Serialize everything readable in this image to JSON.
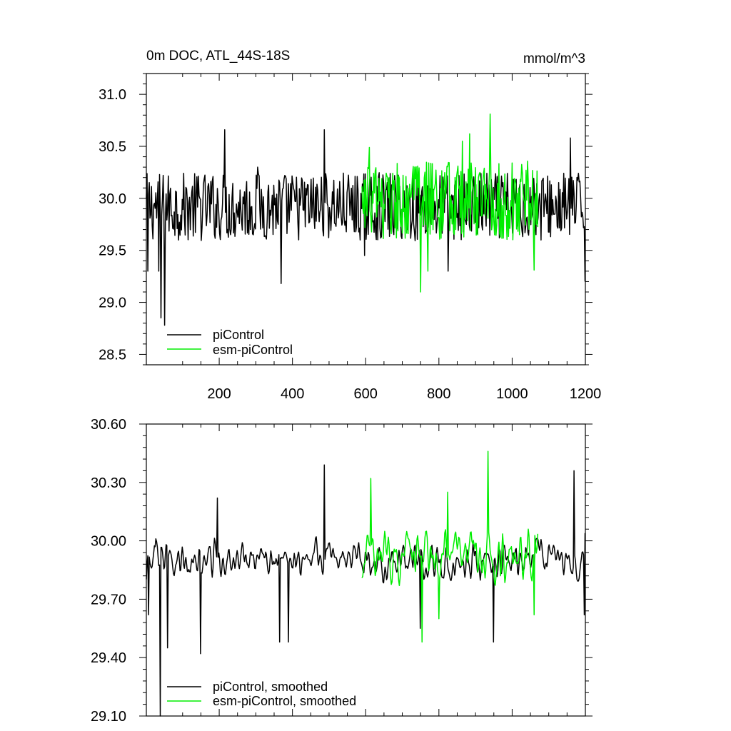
{
  "chart_data": [
    {
      "type": "line",
      "title": "0m DOC, ATL_44S-18S",
      "units": "mmol/m^3",
      "xlim": [
        1,
        1200
      ],
      "ylim": [
        28.4,
        31.2
      ],
      "x_ticks": [
        200,
        400,
        600,
        800,
        1000,
        1200
      ],
      "y_ticks": [
        28.5,
        29.0,
        29.5,
        30.0,
        30.5,
        31.0
      ],
      "y_tick_labels": [
        "28.5",
        "29.0",
        "29.5",
        "30.0",
        "30.5",
        "31.0"
      ],
      "grid": false,
      "legend_position": "bottom-left",
      "series": [
        {
          "name": "piControl",
          "color": "#000000",
          "x_range": [
            1,
            1200
          ],
          "step": 2,
          "mean": 29.92,
          "noise_amplitude": 0.33,
          "extremes": [
            [
              5,
              29.3
            ],
            [
              35,
              29.3
            ],
            [
              42,
              28.85
            ],
            [
              52,
              28.78
            ],
            [
              215,
              30.66
            ],
            [
              305,
              30.3
            ],
            [
              370,
              29.18
            ],
            [
              488,
              30.66
            ],
            [
              598,
              29.45
            ],
            [
              825,
              29.3
            ],
            [
              1160,
              30.58
            ],
            [
              1200,
              29.2
            ]
          ]
        },
        {
          "name": "esm-piControl",
          "color": "#00ee00",
          "x_range": [
            590,
            1070
          ],
          "step": 2,
          "mean": 29.98,
          "noise_amplitude": 0.38,
          "extremes": [
            [
              610,
              30.49
            ],
            [
              750,
              29.1
            ],
            [
              770,
              29.3
            ],
            [
              865,
              30.55
            ],
            [
              885,
              30.62
            ],
            [
              940,
              30.81
            ],
            [
              1060,
              29.31
            ]
          ]
        }
      ]
    },
    {
      "type": "line",
      "ylim": [
        29.1,
        30.6
      ],
      "x_ticks": [
        200,
        400,
        600,
        800,
        1000,
        1200
      ],
      "y_ticks": [
        29.1,
        29.4,
        29.7,
        30.0,
        30.3,
        30.6
      ],
      "y_tick_labels": [
        "29.10",
        "29.40",
        "29.70",
        "30.00",
        "30.30",
        "30.60"
      ],
      "grid": false,
      "legend_position": "bottom-left",
      "series": [
        {
          "name": "piControl, smoothed",
          "color": "#000000",
          "x_range": [
            1,
            1200
          ],
          "step": 2,
          "mean": 29.9,
          "noise_amplitude": 0.14,
          "extremes": [
            [
              8,
              29.62
            ],
            [
              25,
              29.97
            ],
            [
              40,
              29.1
            ],
            [
              60,
              29.45
            ],
            [
              150,
              29.42
            ],
            [
              195,
              30.22
            ],
            [
              365,
              29.48
            ],
            [
              390,
              29.48
            ],
            [
              488,
              30.39
            ],
            [
              750,
              29.55
            ],
            [
              950,
              29.48
            ],
            [
              1170,
              30.36
            ],
            [
              1198,
              29.62
            ]
          ]
        },
        {
          "name": "esm-piControl, smoothed",
          "color": "#00ee00",
          "x_range": [
            590,
            1070
          ],
          "step": 2,
          "mean": 29.92,
          "noise_amplitude": 0.15,
          "extremes": [
            [
              615,
              30.32
            ],
            [
              755,
              29.48
            ],
            [
              800,
              29.6
            ],
            [
              825,
              30.25
            ],
            [
              935,
              30.46
            ],
            [
              1060,
              29.62
            ]
          ]
        }
      ]
    }
  ]
}
